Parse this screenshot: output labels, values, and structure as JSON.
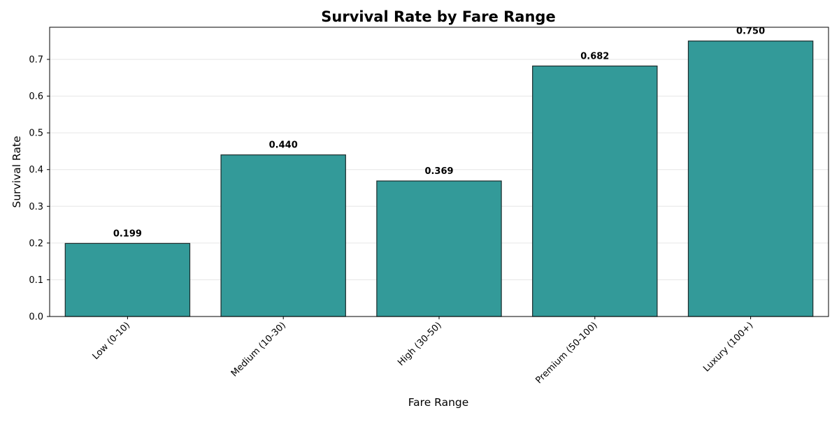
{
  "chart_data": {
    "type": "bar",
    "title": "Survival Rate by Fare Range",
    "xlabel": "Fare Range",
    "ylabel": "Survival Rate",
    "categories": [
      "Low (0-10)",
      "Medium (10-30)",
      "High (30-50)",
      "Premium (50-100)",
      "Luxury (100+)"
    ],
    "values": [
      0.199,
      0.44,
      0.369,
      0.682,
      0.75
    ],
    "data_labels": [
      "0.199",
      "0.440",
      "0.369",
      "0.682",
      "0.750"
    ],
    "ylim": [
      0,
      0.7875
    ],
    "yticks": [
      0.0,
      0.1,
      0.2,
      0.3,
      0.4,
      0.5,
      0.6,
      0.7
    ],
    "ytick_labels": [
      "0.0",
      "0.1",
      "0.2",
      "0.3",
      "0.4",
      "0.5",
      "0.6",
      "0.7"
    ],
    "grid": "y-axis, light gray",
    "legend": "none",
    "colors": {
      "bar_fill": "#339a99",
      "bar_edge": "#1b2b2b",
      "grid": "#e6e6e6",
      "axis": "#000000"
    }
  }
}
